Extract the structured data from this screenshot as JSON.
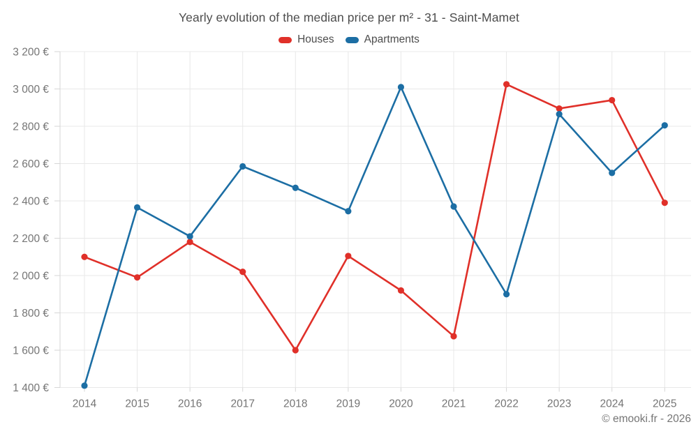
{
  "title": "Yearly evolution of the median price per m² - 31 - Saint-Mamet",
  "footer": "© emooki.fr - 2026",
  "colors": {
    "houses": "#e03029",
    "apartments": "#1c6ea4",
    "title_text": "#4d4d4d",
    "axis_text": "#757575",
    "gridline": "#e8e8e8",
    "tick": "#d6d6d6",
    "background": "#ffffff"
  },
  "chart_data": {
    "type": "line",
    "title": "Yearly evolution of the median price per m² - 31 - Saint-Mamet",
    "categories": [
      "2014",
      "2015",
      "2016",
      "2017",
      "2018",
      "2019",
      "2020",
      "2021",
      "2022",
      "2023",
      "2024",
      "2025"
    ],
    "series": [
      {
        "name": "Houses",
        "color": "#e03029",
        "values": [
          2100,
          1990,
          2180,
          2020,
          1600,
          2105,
          1920,
          1675,
          3025,
          2895,
          2940,
          2390
        ]
      },
      {
        "name": "Apartments",
        "color": "#1c6ea4",
        "values": [
          1410,
          2365,
          2210,
          2585,
          2470,
          2345,
          3010,
          2370,
          1900,
          2865,
          2550,
          2805
        ]
      }
    ],
    "ylim": [
      1400,
      3200
    ],
    "ytick_step": 200,
    "ytick_labels": [
      "1 400 €",
      "1 600 €",
      "1 800 €",
      "2 000 €",
      "2 200 €",
      "2 400 €",
      "2 600 €",
      "2 800 €",
      "3 000 €",
      "3 200 €"
    ],
    "ytick_suffix": " €",
    "grid": true,
    "legend_position": "top",
    "legend_entries": [
      "Houses",
      "Apartments"
    ]
  }
}
